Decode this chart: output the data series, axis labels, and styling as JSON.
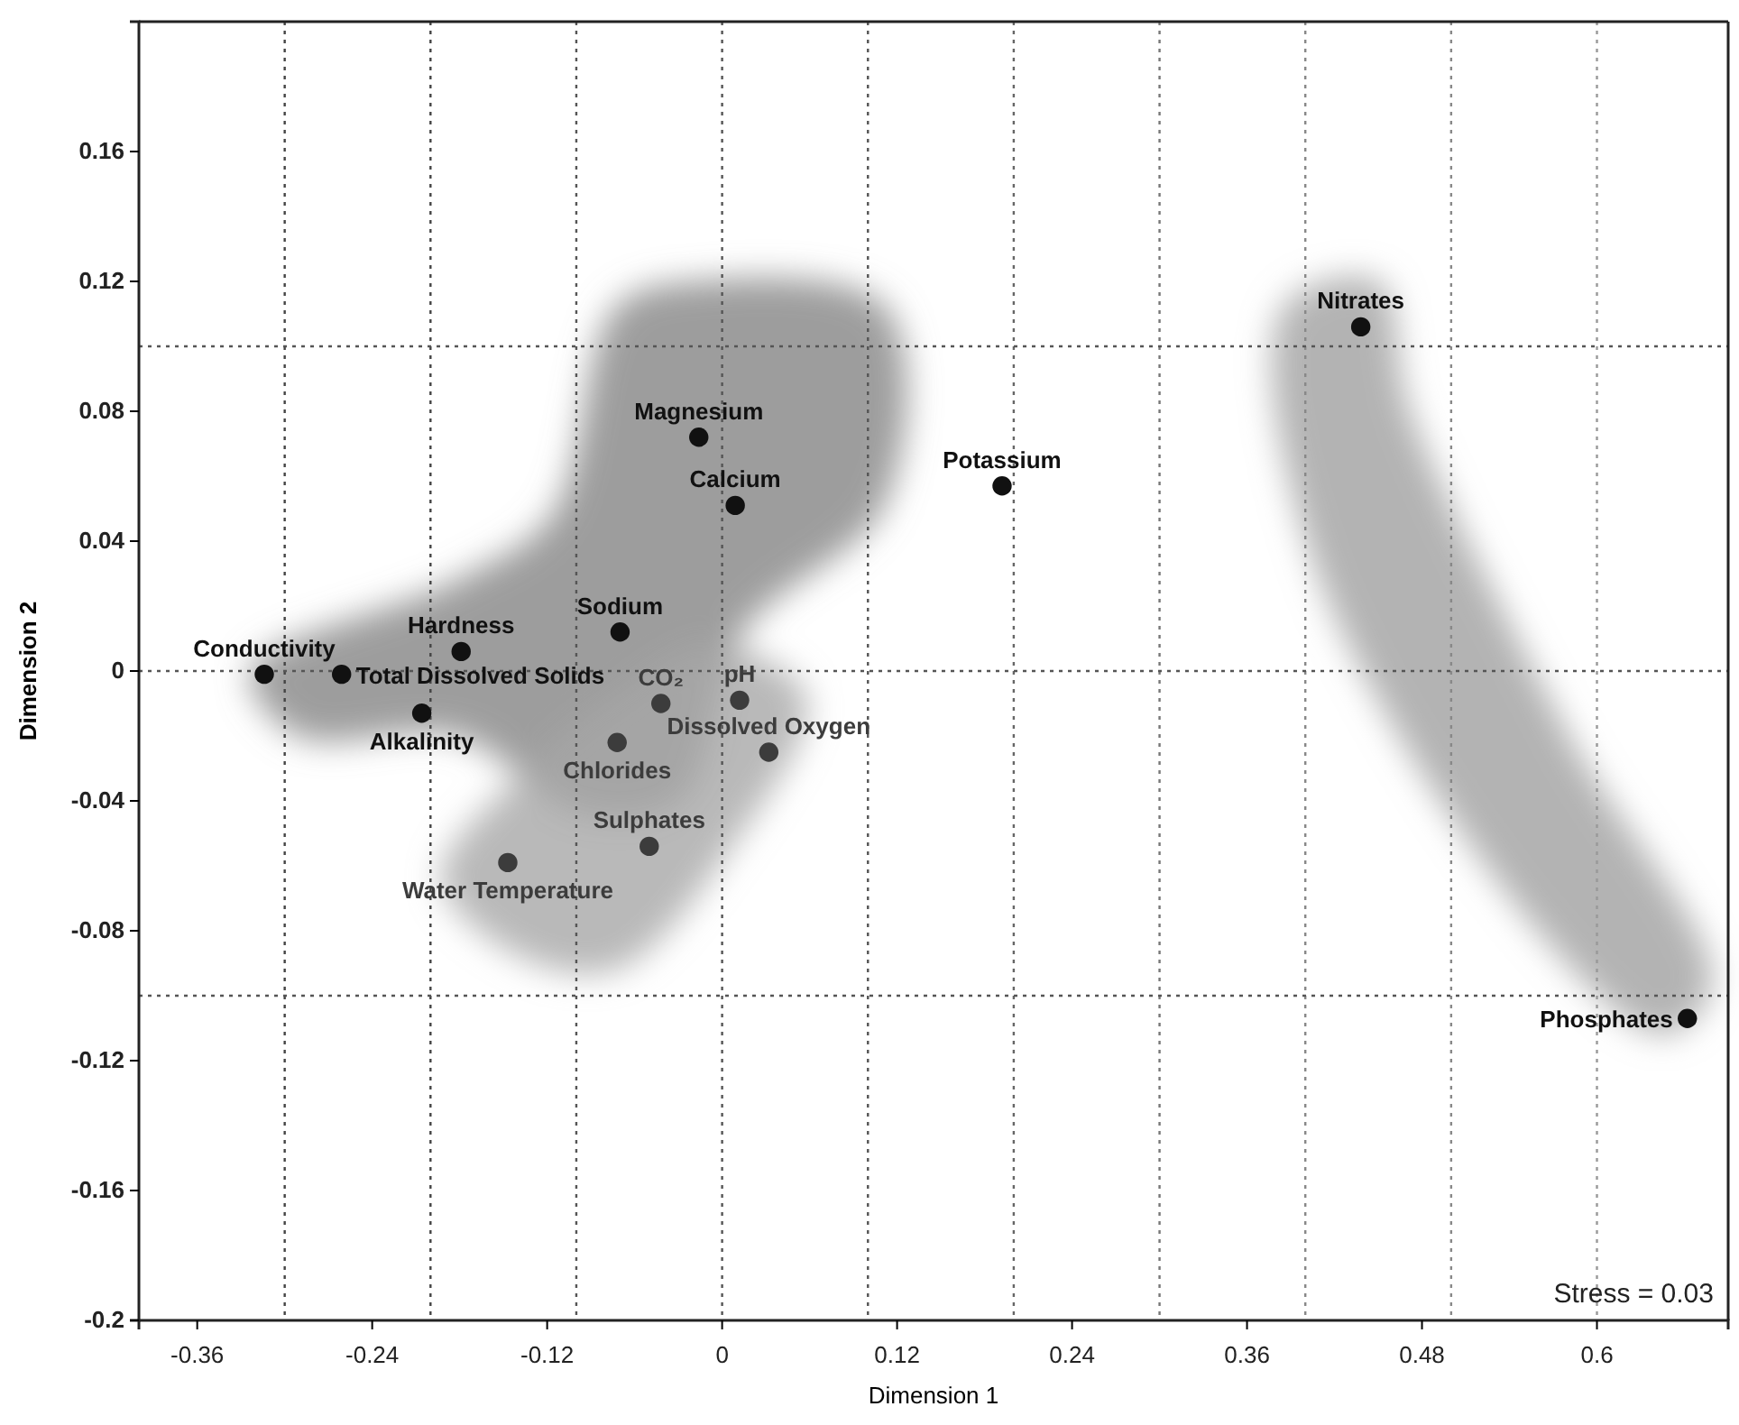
{
  "chart_data": {
    "type": "scatter",
    "xlabel": "Dimension 1",
    "ylabel": "Dimension 2",
    "xlim": [
      -0.4,
      0.69
    ],
    "ylim": [
      -0.2,
      0.2
    ],
    "xticks": [
      -0.36,
      -0.24,
      -0.12,
      0,
      0.12,
      0.24,
      0.36,
      0.48,
      0.6
    ],
    "yticks": [
      -0.2,
      -0.16,
      -0.12,
      -0.08,
      -0.04,
      0,
      0.04,
      0.08,
      0.12,
      0.16
    ],
    "marker": "circle",
    "x": [
      -0.314,
      -0.261,
      -0.179,
      -0.206,
      -0.07,
      -0.016,
      0.009,
      0.192,
      0.438,
      0.662,
      -0.042,
      0.012,
      -0.072,
      0.032,
      -0.05,
      -0.147
    ],
    "values": [
      -0.001,
      -0.001,
      0.006,
      -0.013,
      0.012,
      0.072,
      0.051,
      0.057,
      0.106,
      -0.107,
      -0.01,
      -0.009,
      -0.022,
      -0.025,
      -0.054,
      -0.059
    ],
    "colors": [
      "#111111",
      "#111111",
      "#111111",
      "#111111",
      "#111111",
      "#111111",
      "#111111",
      "#111111",
      "#111111",
      "#111111",
      "#3c3c3c",
      "#3c3c3c",
      "#3c3c3c",
      "#3c3c3c",
      "#3c3c3c",
      "#3c3c3c"
    ],
    "ref_lines": [
      {
        "axis": "x",
        "value": -0.3,
        "line_style": "dotted",
        "color": "#444444"
      },
      {
        "axis": "x",
        "value": -0.2,
        "line_style": "dotted",
        "color": "#444444"
      },
      {
        "axis": "x",
        "value": -0.1,
        "line_style": "dotted",
        "color": "#555555"
      },
      {
        "axis": "x",
        "value": 0,
        "line_style": "dotted",
        "color": "#555555"
      },
      {
        "axis": "x",
        "value": 0.1,
        "line_style": "dotted",
        "color": "#555555"
      },
      {
        "axis": "x",
        "value": 0.2,
        "line_style": "dotted",
        "color": "#666666"
      },
      {
        "axis": "x",
        "value": 0.3,
        "line_style": "dotted",
        "color": "#777777"
      },
      {
        "axis": "x",
        "value": 0.4,
        "line_style": "dotted",
        "color": "#888888"
      },
      {
        "axis": "x",
        "value": 0.5,
        "line_style": "dotted",
        "color": "#888888"
      },
      {
        "axis": "x",
        "value": 0.6,
        "line_style": "dotted",
        "color": "#999999"
      },
      {
        "axis": "y",
        "value": 0.1,
        "line_style": "dotted",
        "color": "#555555"
      },
      {
        "axis": "y",
        "value": 0,
        "line_style": "dotted",
        "color": "#555555"
      },
      {
        "axis": "y",
        "value": -0.1,
        "line_style": "dotted",
        "color": "#555555"
      }
    ],
    "annotations": [
      {
        "text": "Conductivity",
        "x": -0.314,
        "y": -0.001
      },
      {
        "text": "Total Dissolved Solids",
        "x": -0.261,
        "y": -0.001
      },
      {
        "text": "Hardness",
        "x": -0.179,
        "y": 0.006
      },
      {
        "text": "Alkalinity",
        "x": -0.206,
        "y": -0.013
      },
      {
        "text": "Sodium",
        "x": -0.07,
        "y": 0.012
      },
      {
        "text": "Magnesium",
        "x": -0.016,
        "y": 0.072
      },
      {
        "text": "Calcium",
        "x": 0.009,
        "y": 0.051
      },
      {
        "text": "Potassium",
        "x": 0.192,
        "y": 0.057
      },
      {
        "text": "Nitrates",
        "x": 0.438,
        "y": 0.106
      },
      {
        "text": "Phosphates",
        "x": 0.662,
        "y": -0.107
      },
      {
        "text": "CO₂",
        "x": -0.042,
        "y": -0.01
      },
      {
        "text": "pH",
        "x": 0.012,
        "y": -0.009
      },
      {
        "text": "Chlorides",
        "x": -0.072,
        "y": -0.022
      },
      {
        "text": "Dissolved Oxygen",
        "x": 0.032,
        "y": -0.025
      },
      {
        "text": "Sulphates",
        "x": -0.05,
        "y": -0.054
      },
      {
        "text": "Water Temperature",
        "x": -0.147,
        "y": -0.059
      },
      "Stress = 0.03"
    ]
  }
}
